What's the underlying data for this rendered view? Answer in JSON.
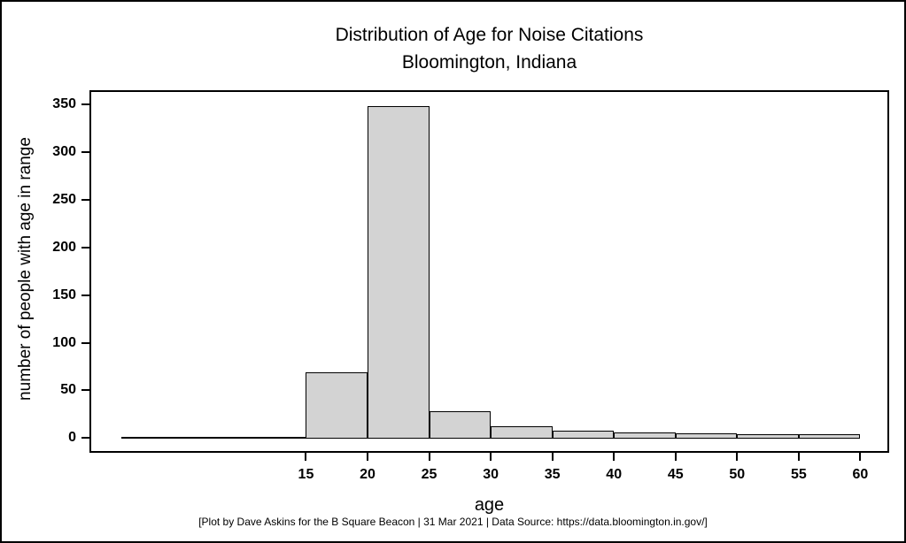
{
  "window": {
    "background": "#ffffff",
    "border_color": "#000000"
  },
  "chart_data": {
    "type": "bar",
    "subtype": "histogram",
    "title": "Distribution of Age for Noise Citations",
    "subtitle": "Bloomington, Indiana",
    "xlabel": "age",
    "ylabel": "number of people with age in range",
    "caption": "[Plot by Dave Askins for the B Square Beacon | 31 Mar 2021 | Data Source: https://data.bloomington.in.gov/]",
    "bin_width": 5,
    "bin_edges": [
      0,
      5,
      10,
      15,
      20,
      25,
      30,
      35,
      40,
      45,
      50,
      55,
      60
    ],
    "counts": [
      0,
      0,
      0,
      69,
      349,
      28,
      12,
      8,
      6,
      5,
      4,
      4
    ],
    "categories": [
      "0-5",
      "5-10",
      "10-15",
      "15-20",
      "20-25",
      "25-30",
      "30-35",
      "35-40",
      "40-45",
      "45-50",
      "50-55",
      "55-60"
    ],
    "x_ticks": [
      15,
      20,
      25,
      30,
      35,
      40,
      45,
      50,
      55,
      60
    ],
    "y_ticks": [
      0,
      50,
      100,
      150,
      200,
      250,
      300,
      350
    ],
    "xlim": [
      -2.43,
      62.2
    ],
    "ylim": [
      -13.7,
      363.4
    ],
    "grid": false,
    "legend": null,
    "bar_fill": "#d3d3d3",
    "bar_stroke": "#000000",
    "axis_color": "#000000",
    "text_color": "#000000"
  }
}
